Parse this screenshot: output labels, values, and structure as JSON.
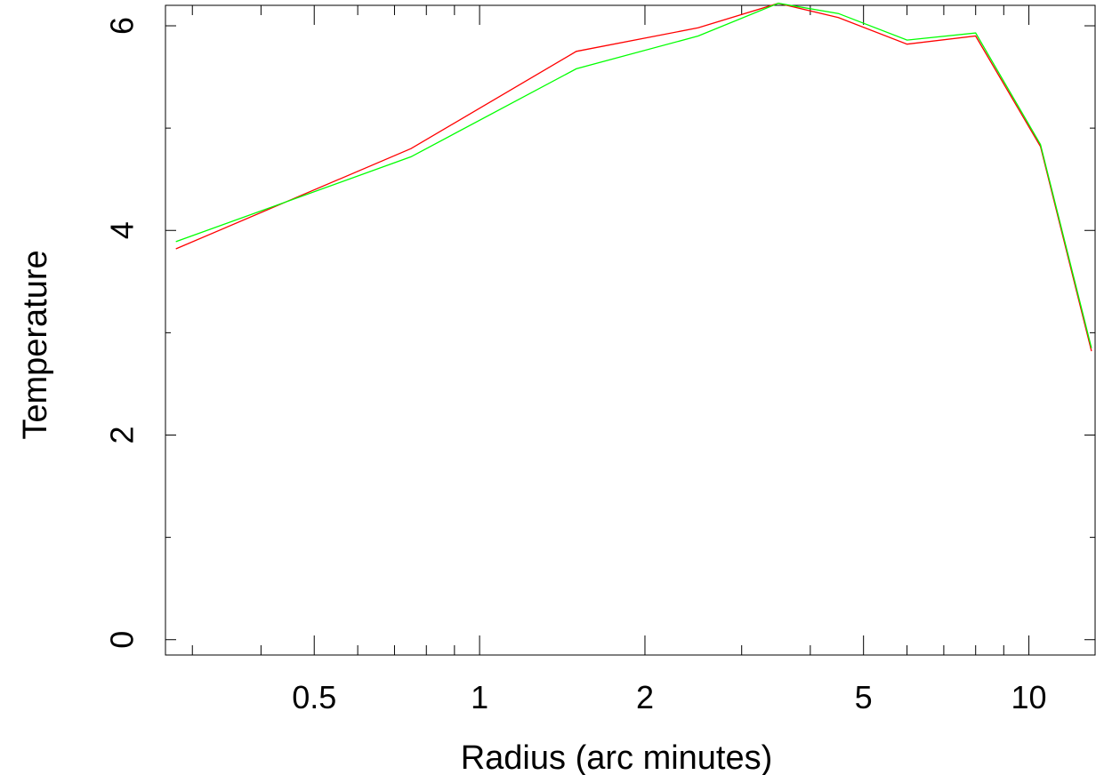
{
  "chart_data": {
    "type": "line",
    "title": "",
    "xlabel": "Radius (arc minutes)",
    "ylabel": "Temperature",
    "x_scale": "log",
    "xlim": [
      0.268,
      13.2
    ],
    "ylim": [
      -0.15,
      6.2
    ],
    "x_tick_labels": [
      "0.5",
      "1",
      "2",
      "5",
      "10"
    ],
    "x_major_ticks": [
      0.5,
      1,
      2,
      5,
      10
    ],
    "x_minor_ticks": [
      0.3,
      0.4,
      0.6,
      0.7,
      0.8,
      0.9,
      3,
      4,
      6,
      7,
      8,
      9
    ],
    "y_tick_labels": [
      "0",
      "2",
      "4",
      "6"
    ],
    "y_major_ticks": [
      0,
      2,
      4,
      6
    ],
    "y_minor_ticks": [
      1,
      3,
      5
    ],
    "grid": false,
    "series": [
      {
        "color": "#ff0000",
        "x": [
          0.28,
          0.75,
          1.5,
          2.5,
          3.5,
          4.5,
          6.0,
          8.0,
          10.5,
          13.0
        ],
        "y": [
          3.82,
          4.8,
          5.75,
          5.98,
          6.22,
          6.08,
          5.82,
          5.9,
          4.82,
          2.82
        ]
      },
      {
        "color": "#00ff00",
        "x": [
          0.28,
          0.75,
          1.5,
          2.5,
          3.5,
          4.5,
          6.0,
          8.0,
          10.5,
          13.0
        ],
        "y": [
          3.89,
          4.72,
          5.58,
          5.9,
          6.22,
          6.12,
          5.86,
          5.93,
          4.84,
          2.85
        ]
      }
    ]
  }
}
